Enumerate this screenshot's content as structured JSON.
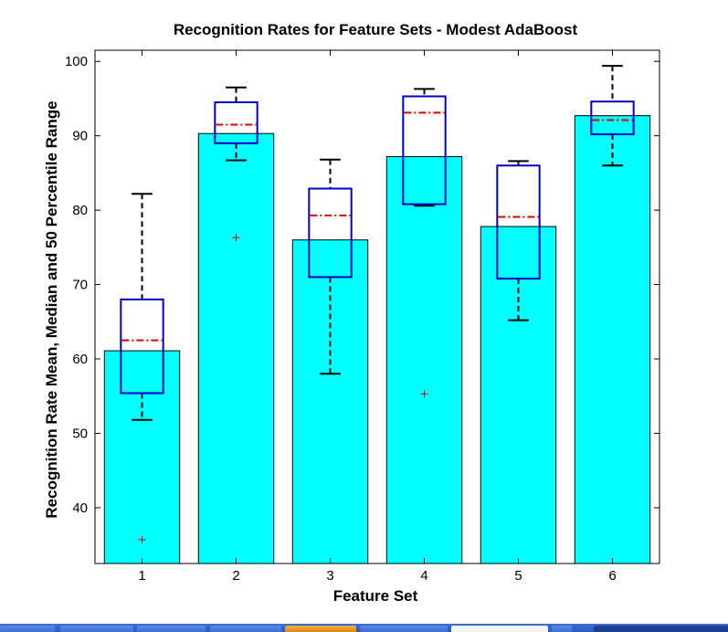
{
  "chart_data": {
    "type": "bar",
    "title": "Recognition Rates for Feature Sets - Modest AdaBoost",
    "xlabel": "Feature Set",
    "ylabel": "Recognition Rate Mean, Median and 50 Percentile Range",
    "categories": [
      "1",
      "2",
      "3",
      "4",
      "5",
      "6"
    ],
    "ylim": [
      32.5,
      101.5
    ],
    "yticks": [
      40,
      50,
      60,
      70,
      80,
      90,
      100
    ],
    "bar_color": "#00ffff",
    "series": [
      {
        "values": [
          61.1,
          90.3,
          76.0,
          87.2,
          77.8,
          92.7
        ]
      }
    ],
    "boxplot": [
      {
        "lower_whisker": 51.8,
        "q1": 55.4,
        "median": 62.5,
        "q3": 68.0,
        "upper_whisker": 82.2,
        "outliers": [
          35.7
        ]
      },
      {
        "lower_whisker": 86.7,
        "q1": 89.0,
        "median": 91.5,
        "q3": 94.5,
        "upper_whisker": 96.5,
        "outliers": [
          76.3
        ]
      },
      {
        "lower_whisker": 58.0,
        "q1": 71.0,
        "median": 79.3,
        "q3": 82.9,
        "upper_whisker": 86.8,
        "outliers": []
      },
      {
        "lower_whisker": 80.6,
        "q1": 80.8,
        "median": 93.1,
        "q3": 95.3,
        "upper_whisker": 96.3,
        "outliers": [
          55.3
        ]
      },
      {
        "lower_whisker": 65.2,
        "q1": 70.8,
        "median": 79.1,
        "q3": 86.0,
        "upper_whisker": 86.6,
        "outliers": []
      },
      {
        "lower_whisker": 86.0,
        "q1": 90.2,
        "median": 92.1,
        "q3": 94.6,
        "upper_whisker": 99.4,
        "outliers": []
      }
    ],
    "colors": {
      "box": "#0000c8",
      "median": "#e00000",
      "whisker": "#000000",
      "outlier": "#e00000"
    },
    "grid": false
  }
}
